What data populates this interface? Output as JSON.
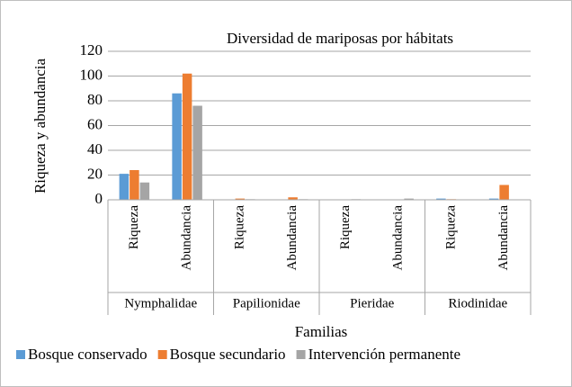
{
  "chart_data": {
    "type": "bar",
    "title": "Diversidad de mariposas por hábitats",
    "x_label": "Familias",
    "y_label": "Riqueza y abundancia",
    "groups": [
      "Nymphalidae",
      "Papilionidae",
      "Pieridae",
      "Riodinidae"
    ],
    "categories": [
      "Riqueza",
      "Abundancia",
      "Riqueza",
      "Abundancia",
      "Riqueza",
      "Abundancia",
      "Riqueza",
      "Abundancia"
    ],
    "series": [
      {
        "name": "Bosque conservado",
        "color": "#5b9bd5",
        "values": [
          21,
          86,
          0,
          0,
          0,
          0,
          1,
          1
        ]
      },
      {
        "name": "Bosque secundario",
        "color": "#ed7d31",
        "values": [
          24,
          102,
          1,
          2,
          0,
          0,
          0.5,
          12
        ]
      },
      {
        "name": "Intervención permanente",
        "color": "#a5a5a5",
        "values": [
          14,
          76,
          0.5,
          0.5,
          0.5,
          1,
          0,
          0
        ]
      }
    ],
    "ylim": [
      0,
      120
    ],
    "yticks": [
      0,
      20,
      40,
      60,
      80,
      100,
      120
    ],
    "grid": true,
    "legend": "bottom"
  }
}
